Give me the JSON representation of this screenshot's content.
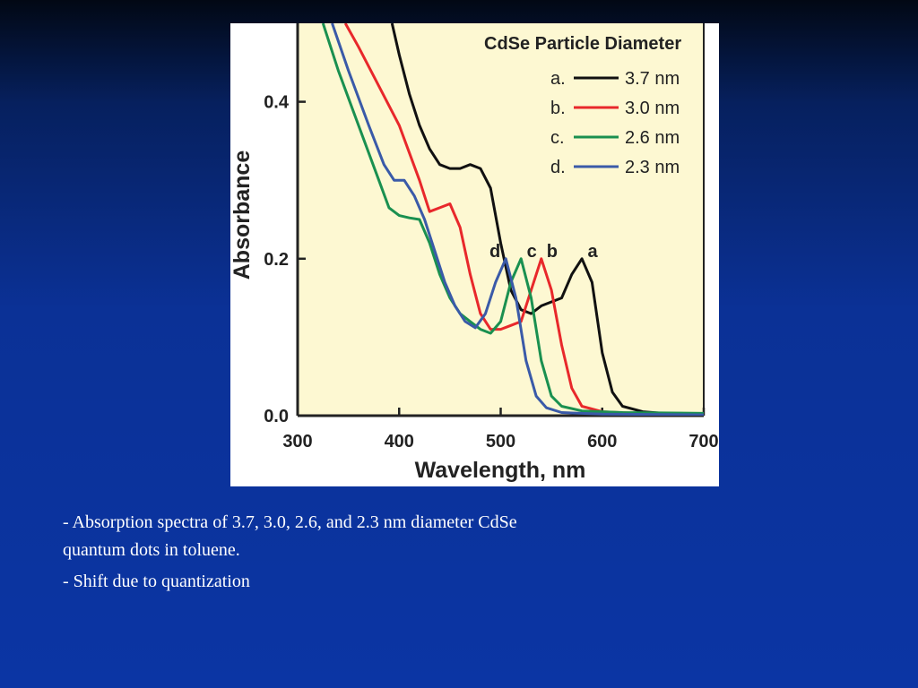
{
  "chart_data": {
    "type": "line",
    "ylabel": "Absorbance",
    "xlabel": "Wavelength, nm",
    "legend_title": "CdSe Particle Diameter",
    "xlim": [
      300,
      700
    ],
    "xticks": [
      300,
      400,
      500,
      600,
      700
    ],
    "ylim": [
      0,
      0.5
    ],
    "yticks": [
      {
        "value": 0,
        "label": "0.0"
      },
      0.2,
      0.4
    ],
    "series": [
      {
        "name": "3.7 nm",
        "legend_label": "a.",
        "peak_label": "a",
        "color": "#111111",
        "x": [
          393,
          400,
          410,
          420,
          430,
          440,
          450,
          460,
          470,
          480,
          490,
          500,
          510,
          520,
          530,
          540,
          550,
          560,
          570,
          580,
          590,
          600,
          610,
          620,
          640,
          660,
          700
        ],
        "values": [
          0.5,
          0.46,
          0.41,
          0.37,
          0.34,
          0.32,
          0.315,
          0.315,
          0.32,
          0.315,
          0.29,
          0.22,
          0.16,
          0.135,
          0.13,
          0.14,
          0.145,
          0.15,
          0.18,
          0.2,
          0.17,
          0.08,
          0.03,
          0.012,
          0.005,
          0.003,
          0.002
        ]
      },
      {
        "name": "3.0 nm",
        "legend_label": "b.",
        "peak_label": "b",
        "color": "#e8282b",
        "x": [
          347,
          360,
          380,
          400,
          420,
          430,
          440,
          450,
          460,
          470,
          480,
          490,
          500,
          510,
          520,
          530,
          540,
          550,
          560,
          570,
          580,
          600,
          650,
          700
        ],
        "values": [
          0.5,
          0.47,
          0.42,
          0.37,
          0.3,
          0.26,
          0.265,
          0.27,
          0.24,
          0.18,
          0.13,
          0.11,
          0.11,
          0.115,
          0.12,
          0.16,
          0.2,
          0.16,
          0.09,
          0.035,
          0.012,
          0.005,
          0.002,
          0.001
        ]
      },
      {
        "name": "2.6 nm",
        "legend_label": "c.",
        "peak_label": "c",
        "color": "#1a9050",
        "x": [
          325,
          340,
          360,
          380,
          390,
          400,
          410,
          420,
          430,
          440,
          450,
          460,
          470,
          480,
          490,
          500,
          510,
          520,
          530,
          540,
          550,
          560,
          580,
          620,
          700
        ],
        "values": [
          0.5,
          0.44,
          0.37,
          0.3,
          0.265,
          0.255,
          0.252,
          0.25,
          0.22,
          0.18,
          0.15,
          0.13,
          0.12,
          0.11,
          0.105,
          0.12,
          0.17,
          0.2,
          0.15,
          0.07,
          0.025,
          0.012,
          0.006,
          0.004,
          0.003
        ]
      },
      {
        "name": "2.3 nm",
        "legend_label": "d.",
        "peak_label": "d",
        "color": "#3a5aa8",
        "x": [
          334,
          350,
          370,
          385,
          395,
          405,
          415,
          425,
          435,
          445,
          455,
          465,
          475,
          485,
          495,
          505,
          515,
          525,
          535,
          545,
          560,
          600,
          700
        ],
        "values": [
          0.5,
          0.44,
          0.37,
          0.32,
          0.3,
          0.3,
          0.28,
          0.25,
          0.21,
          0.17,
          0.14,
          0.12,
          0.112,
          0.13,
          0.17,
          0.2,
          0.15,
          0.07,
          0.025,
          0.01,
          0.004,
          0.002,
          0.001
        ]
      }
    ]
  },
  "caption": {
    "lines": [
      "- Absorption spectra of  3.7, 3.0, 2.6, and 2.3 nm diameter CdSe",
      "quantum dots in toluene.",
      "- Shift due to quantization"
    ]
  }
}
